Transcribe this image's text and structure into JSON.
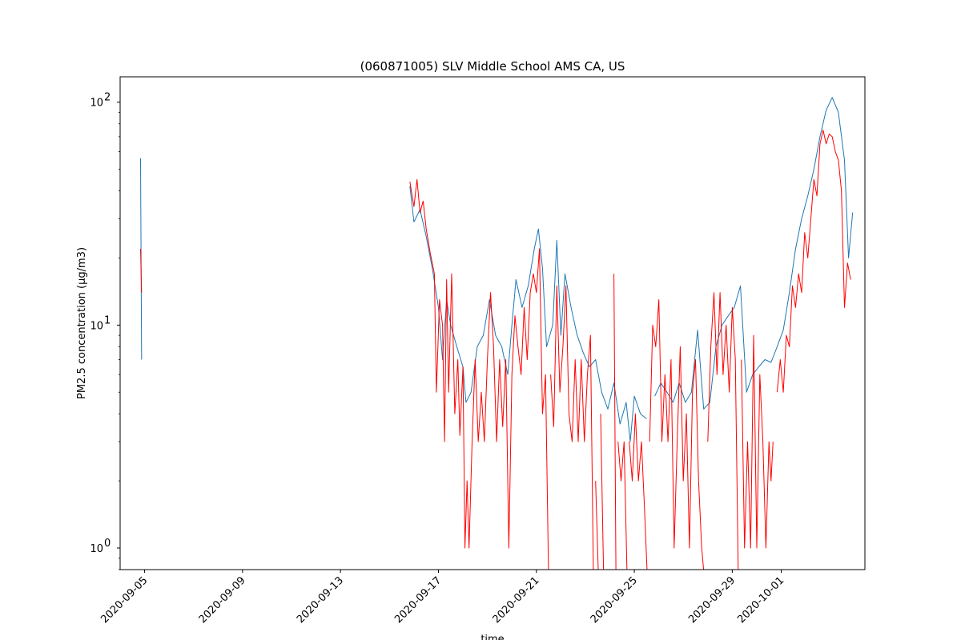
{
  "chart_data": {
    "type": "line",
    "title": "(060871005) SLV Middle School AMS CA, US",
    "xlabel": "time",
    "ylabel": "PM2.5 concentration (µg/m3)",
    "y_scale": "log",
    "ylim": [
      0.8,
      130
    ],
    "xlim": [
      "2020-09-04T00:00",
      "2020-10-04T10:00"
    ],
    "x_ticks": [
      "2020-09-05",
      "2020-09-09",
      "2020-09-13",
      "2020-09-17",
      "2020-09-21",
      "2020-09-25",
      "2020-09-29",
      "2020-10-01"
    ],
    "y_ticks": [
      {
        "value": 1,
        "base": "10",
        "exp": "0"
      },
      {
        "value": 10,
        "base": "10",
        "exp": "1"
      },
      {
        "value": 100,
        "base": "10",
        "exp": "2"
      }
    ],
    "grid": false,
    "legend": "none",
    "series": [
      {
        "color": "#1f77b4",
        "points": [
          [
            "2020-09-04T20:00",
            56
          ],
          [
            "2020-09-04T21:00",
            7
          ],
          null,
          [
            "2020-09-15T20:00",
            42
          ],
          [
            "2020-09-16T00:00",
            29
          ],
          [
            "2020-09-16T06:00",
            33
          ],
          [
            "2020-09-16T12:00",
            25
          ],
          [
            "2020-09-16T18:00",
            18
          ],
          [
            "2020-09-17T00:00",
            12
          ],
          [
            "2020-09-17T04:00",
            7
          ],
          [
            "2020-09-17T08:00",
            13
          ],
          [
            "2020-09-17T12:00",
            10
          ],
          [
            "2020-09-17T18:00",
            8
          ],
          [
            "2020-09-18T00:00",
            6.5
          ],
          [
            "2020-09-18T03:00",
            4.5
          ],
          [
            "2020-09-18T08:00",
            5
          ],
          [
            "2020-09-18T14:00",
            8
          ],
          [
            "2020-09-18T20:00",
            9
          ],
          [
            "2020-09-19T02:00",
            13
          ],
          [
            "2020-09-19T08:00",
            9
          ],
          [
            "2020-09-19T14:00",
            8
          ],
          [
            "2020-09-19T20:00",
            6
          ],
          [
            "2020-09-20T00:00",
            10
          ],
          [
            "2020-09-20T04:00",
            16
          ],
          [
            "2020-09-20T10:00",
            12
          ],
          [
            "2020-09-20T16:00",
            15
          ],
          [
            "2020-09-20T22:00",
            22
          ],
          [
            "2020-09-21T02:00",
            27
          ],
          [
            "2020-09-21T06:00",
            18
          ],
          [
            "2020-09-21T10:00",
            8
          ],
          [
            "2020-09-21T16:00",
            10
          ],
          [
            "2020-09-21T20:00",
            24
          ],
          [
            "2020-09-22T00:00",
            9
          ],
          [
            "2020-09-22T04:00",
            17
          ],
          [
            "2020-09-22T10:00",
            12
          ],
          [
            "2020-09-22T16:00",
            9
          ],
          [
            "2020-09-22T22:00",
            7.5
          ],
          [
            "2020-09-23T04:00",
            6.5
          ],
          [
            "2020-09-23T10:00",
            7
          ],
          [
            "2020-09-23T16:00",
            5
          ],
          [
            "2020-09-23T22:00",
            4.2
          ],
          [
            "2020-09-24T04:00",
            5.5
          ],
          [
            "2020-09-24T10:00",
            3.6
          ],
          [
            "2020-09-24T16:00",
            4.5
          ],
          [
            "2020-09-24T20:00",
            3
          ],
          [
            "2020-09-25T00:00",
            4.8
          ],
          [
            "2020-09-25T06:00",
            4
          ],
          [
            "2020-09-25T12:00",
            3.8
          ],
          null,
          [
            "2020-09-25T20:00",
            4.8
          ],
          [
            "2020-09-26T02:00",
            5.5
          ],
          [
            "2020-09-26T08:00",
            5
          ],
          [
            "2020-09-26T14:00",
            4.5
          ],
          [
            "2020-09-26T20:00",
            5.5
          ],
          [
            "2020-09-27T02:00",
            4.5
          ],
          [
            "2020-09-27T08:00",
            5
          ],
          [
            "2020-09-27T14:00",
            9.5
          ],
          [
            "2020-09-27T20:00",
            4.2
          ],
          [
            "2020-09-28T02:00",
            4.5
          ],
          [
            "2020-09-28T08:00",
            8
          ],
          [
            "2020-09-28T14:00",
            10
          ],
          [
            "2020-09-28T20:00",
            11
          ],
          [
            "2020-09-29T02:00",
            12
          ],
          [
            "2020-09-29T08:00",
            15
          ],
          [
            "2020-09-29T14:00",
            5
          ],
          [
            "2020-09-29T20:00",
            6
          ],
          [
            "2020-09-30T02:00",
            6.5
          ],
          [
            "2020-09-30T08:00",
            7
          ],
          [
            "2020-09-30T14:00",
            6.8
          ],
          [
            "2020-09-30T20:00",
            8
          ],
          [
            "2020-10-01T02:00",
            9.5
          ],
          [
            "2020-10-01T08:00",
            14
          ],
          [
            "2020-10-01T14:00",
            22
          ],
          [
            "2020-10-01T20:00",
            30
          ],
          [
            "2020-10-02T02:00",
            38
          ],
          [
            "2020-10-02T08:00",
            50
          ],
          [
            "2020-10-02T14:00",
            70
          ],
          [
            "2020-10-02T20:00",
            92
          ],
          [
            "2020-10-03T02:00",
            105
          ],
          [
            "2020-10-03T08:00",
            90
          ],
          [
            "2020-10-03T14:00",
            55
          ],
          [
            "2020-10-03T18:00",
            20
          ],
          [
            "2020-10-03T22:00",
            32
          ]
        ]
      },
      {
        "color": "#ff0000",
        "points": [
          [
            "2020-09-04T20:00",
            22
          ],
          [
            "2020-09-04T21:00",
            14
          ],
          null,
          [
            "2020-09-15T20:00",
            44
          ],
          [
            "2020-09-16T00:00",
            34
          ],
          [
            "2020-09-16T03:00",
            45
          ],
          [
            "2020-09-16T06:00",
            32
          ],
          [
            "2020-09-16T09:00",
            36
          ],
          [
            "2020-09-16T12:00",
            27
          ],
          [
            "2020-09-16T16:00",
            21
          ],
          [
            "2020-09-16T20:00",
            17
          ],
          [
            "2020-09-16T22:00",
            5
          ],
          [
            "2020-09-17T01:00",
            13
          ],
          [
            "2020-09-17T04:00",
            10
          ],
          [
            "2020-09-17T06:00",
            3
          ],
          [
            "2020-09-17T08:00",
            16
          ],
          [
            "2020-09-17T10:00",
            5
          ],
          [
            "2020-09-17T13:00",
            17
          ],
          [
            "2020-09-17T16:00",
            4
          ],
          [
            "2020-09-17T19:00",
            7
          ],
          [
            "2020-09-17T21:00",
            3.2
          ],
          [
            "2020-09-18T00:00",
            6.5
          ],
          [
            "2020-09-18T02:00",
            1
          ],
          [
            "2020-09-18T04:00",
            2
          ],
          [
            "2020-09-18T06:00",
            1
          ],
          [
            "2020-09-18T09:00",
            3
          ],
          [
            "2020-09-18T12:00",
            7
          ],
          [
            "2020-09-18T15:00",
            3
          ],
          [
            "2020-09-18T18:00",
            5
          ],
          [
            "2020-09-18T21:00",
            3
          ],
          [
            "2020-09-19T00:00",
            7
          ],
          [
            "2020-09-19T03:00",
            14
          ],
          [
            "2020-09-19T06:00",
            8
          ],
          [
            "2020-09-19T09:00",
            3
          ],
          [
            "2020-09-19T12:00",
            7
          ],
          [
            "2020-09-19T15:00",
            3.5
          ],
          [
            "2020-09-19T18:00",
            7
          ],
          [
            "2020-09-19T21:00",
            1
          ],
          [
            "2020-09-20T00:00",
            6
          ],
          [
            "2020-09-20T03:00",
            11
          ],
          [
            "2020-09-20T06:00",
            8
          ],
          [
            "2020-09-20T09:00",
            6
          ],
          [
            "2020-09-20T12:00",
            12
          ],
          [
            "2020-09-20T15:00",
            7
          ],
          [
            "2020-09-20T18:00",
            14
          ],
          [
            "2020-09-20T21:00",
            17
          ],
          [
            "2020-09-21T00:00",
            14
          ],
          [
            "2020-09-21T03:00",
            22
          ],
          [
            "2020-09-21T06:00",
            4
          ],
          [
            "2020-09-21T09:00",
            6
          ],
          [
            "2020-09-21T12:00",
            0.7
          ],
          null,
          [
            "2020-09-21T14:00",
            6
          ],
          [
            "2020-09-21T17:00",
            3.5
          ],
          [
            "2020-09-21T20:00",
            15
          ],
          [
            "2020-09-21T23:00",
            5
          ],
          [
            "2020-09-22T02:00",
            8
          ],
          [
            "2020-09-22T05:00",
            15
          ],
          [
            "2020-09-22T08:00",
            4
          ],
          [
            "2020-09-22T11:00",
            3
          ],
          [
            "2020-09-22T14:00",
            7
          ],
          [
            "2020-09-22T17:00",
            3
          ],
          [
            "2020-09-22T20:00",
            7
          ],
          [
            "2020-09-22T23:00",
            3
          ],
          [
            "2020-09-23T02:00",
            6
          ],
          [
            "2020-09-23T05:00",
            9
          ],
          [
            "2020-09-23T08:00",
            0.7
          ],
          null,
          [
            "2020-09-23T10:00",
            2
          ],
          [
            "2020-09-23T13:00",
            0.7
          ],
          null,
          [
            "2020-09-23T15:00",
            4
          ],
          [
            "2020-09-23T18:00",
            0.7
          ],
          null,
          [
            "2020-09-24T04:00",
            17
          ],
          [
            "2020-09-24T06:00",
            0.7
          ],
          null,
          [
            "2020-09-24T08:00",
            3
          ],
          [
            "2020-09-24T11:00",
            2
          ],
          [
            "2020-09-24T14:00",
            3
          ],
          [
            "2020-09-24T17:00",
            0.7
          ],
          null,
          [
            "2020-09-24T19:00",
            3
          ],
          [
            "2020-09-24T22:00",
            2
          ],
          [
            "2020-09-25T01:00",
            4
          ],
          [
            "2020-09-25T04:00",
            2
          ],
          [
            "2020-09-25T07:00",
            3
          ],
          [
            "2020-09-25T10:00",
            1.5
          ],
          [
            "2020-09-25T13:00",
            0.7
          ],
          null,
          [
            "2020-09-25T15:00",
            3
          ],
          [
            "2020-09-25T18:00",
            10
          ],
          [
            "2020-09-25T21:00",
            8
          ],
          [
            "2020-09-26T00:00",
            13
          ],
          [
            "2020-09-26T03:00",
            3
          ],
          [
            "2020-09-26T06:00",
            6
          ],
          [
            "2020-09-26T09:00",
            3
          ],
          [
            "2020-09-26T12:00",
            7
          ],
          [
            "2020-09-26T15:00",
            1
          ],
          [
            "2020-09-26T18:00",
            3
          ],
          [
            "2020-09-26T21:00",
            8
          ],
          [
            "2020-09-27T00:00",
            2
          ],
          [
            "2020-09-27T03:00",
            4
          ],
          [
            "2020-09-27T06:00",
            1
          ],
          [
            "2020-09-27T09:00",
            5
          ],
          [
            "2020-09-27T12:00",
            7
          ],
          [
            "2020-09-27T15:00",
            2
          ],
          [
            "2020-09-27T18:00",
            1
          ],
          [
            "2020-09-27T21:00",
            0.7
          ],
          null,
          [
            "2020-09-28T00:00",
            3
          ],
          [
            "2020-09-28T03:00",
            8
          ],
          [
            "2020-09-28T06:00",
            14
          ],
          [
            "2020-09-28T09:00",
            6
          ],
          [
            "2020-09-28T12:00",
            14
          ],
          [
            "2020-09-28T15:00",
            6
          ],
          [
            "2020-09-28T18:00",
            10
          ],
          [
            "2020-09-28T21:00",
            5
          ],
          [
            "2020-09-29T00:00",
            12
          ],
          [
            "2020-09-29T03:00",
            7
          ],
          [
            "2020-09-29T06:00",
            0.7
          ],
          null,
          [
            "2020-09-29T09:00",
            7
          ],
          [
            "2020-09-29T12:00",
            1
          ],
          [
            "2020-09-29T15:00",
            3
          ],
          [
            "2020-09-29T18:00",
            1
          ],
          [
            "2020-09-29T21:00",
            9
          ],
          [
            "2020-09-30T00:00",
            1
          ],
          [
            "2020-09-30T03:00",
            6
          ],
          [
            "2020-09-30T06:00",
            3
          ],
          [
            "2020-09-30T09:00",
            1
          ],
          [
            "2020-09-30T12:00",
            3
          ],
          [
            "2020-09-30T14:00",
            2
          ],
          [
            "2020-09-30T16:00",
            3
          ],
          null,
          [
            "2020-09-30T20:00",
            5
          ],
          [
            "2020-09-30T23:00",
            7
          ],
          [
            "2020-10-01T02:00",
            5
          ],
          [
            "2020-10-01T05:00",
            9
          ],
          [
            "2020-10-01T08:00",
            8
          ],
          [
            "2020-10-01T11:00",
            15
          ],
          [
            "2020-10-01T14:00",
            12
          ],
          [
            "2020-10-01T17:00",
            17
          ],
          [
            "2020-10-01T20:00",
            14
          ],
          [
            "2020-10-01T23:00",
            26
          ],
          [
            "2020-10-02T02:00",
            20
          ],
          [
            "2020-10-02T05:00",
            30
          ],
          [
            "2020-10-02T08:00",
            45
          ],
          [
            "2020-10-02T11:00",
            38
          ],
          [
            "2020-10-02T14:00",
            65
          ],
          [
            "2020-10-02T17:00",
            75
          ],
          [
            "2020-10-02T20:00",
            65
          ],
          [
            "2020-10-02T23:00",
            72
          ],
          [
            "2020-10-03T02:00",
            70
          ],
          [
            "2020-10-03T05:00",
            60
          ],
          [
            "2020-10-03T08:00",
            55
          ],
          [
            "2020-10-03T11:00",
            40
          ],
          [
            "2020-10-03T14:00",
            12
          ],
          [
            "2020-10-03T17:00",
            19
          ],
          [
            "2020-10-03T20:00",
            16
          ]
        ]
      }
    ]
  }
}
